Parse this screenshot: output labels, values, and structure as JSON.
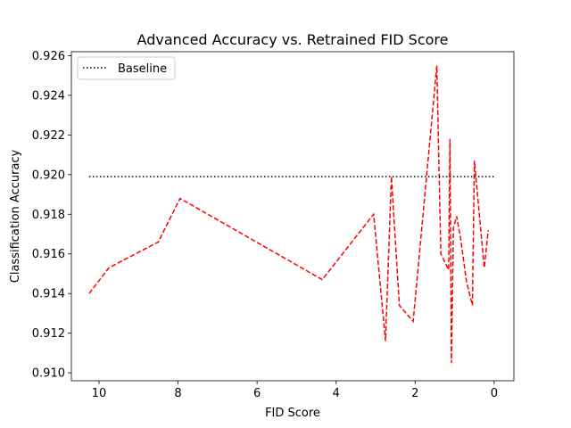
{
  "chart_data": {
    "type": "line",
    "title": "Advanced Accuracy vs. Retrained FID Score",
    "xlabel": "FID Score",
    "ylabel": "Classification Accuracy",
    "xlim": [
      10.7,
      -0.5
    ],
    "ylim": [
      0.9096,
      0.9262
    ],
    "x_inverted": true,
    "grid": false,
    "legend_position": "upper left",
    "x_ticks": [
      10,
      8,
      6,
      4,
      2,
      0
    ],
    "x_tick_labels": [
      "10",
      "8",
      "6",
      "4",
      "2",
      "0"
    ],
    "y_ticks": [
      0.91,
      0.912,
      0.914,
      0.916,
      0.918,
      0.92,
      0.922,
      0.924,
      0.926
    ],
    "y_tick_labels": [
      "0.910",
      "0.912",
      "0.914",
      "0.916",
      "0.918",
      "0.920",
      "0.922",
      "0.924",
      "0.926"
    ],
    "series": [
      {
        "name": "",
        "style": "dashed",
        "color": "#ff0000",
        "x": [
          10.25,
          9.75,
          8.5,
          7.95,
          4.35,
          3.05,
          2.75,
          2.6,
          2.4,
          2.05,
          1.45,
          1.35,
          1.15,
          1.12,
          1.08,
          1.03,
          0.95,
          0.85,
          0.7,
          0.55,
          0.5,
          0.25,
          0.15
        ],
        "y": [
          0.914,
          0.9153,
          0.9166,
          0.9188,
          0.9147,
          0.918,
          0.9116,
          0.9199,
          0.9134,
          0.9126,
          0.9255,
          0.916,
          0.9152,
          0.9218,
          0.9105,
          0.9173,
          0.9179,
          0.9168,
          0.9146,
          0.9134,
          0.9207,
          0.9153,
          0.9172
        ]
      },
      {
        "name": "Baseline",
        "style": "dotted",
        "color": "#000000",
        "x": [
          10.25,
          0.0
        ],
        "y": [
          0.9199,
          0.9199
        ]
      }
    ],
    "legend": [
      {
        "label": "Baseline",
        "style": "dotted",
        "color": "#000000"
      }
    ]
  }
}
